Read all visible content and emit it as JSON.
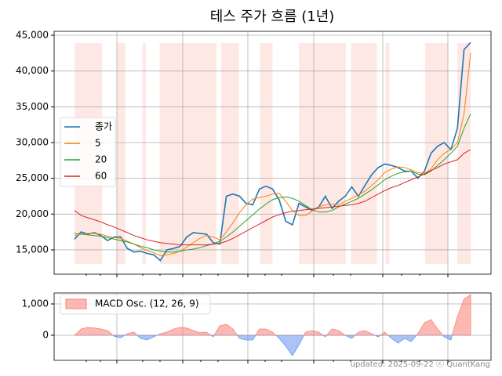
{
  "chart_data": [
    {
      "type": "line",
      "title": "테스 주가 흐름 (1년)",
      "ylim": [
        11600,
        45550
      ],
      "yticks": [
        {
          "value": 15000,
          "label": "15,000"
        },
        {
          "value": 20000,
          "label": "20,000"
        },
        {
          "value": 25000,
          "label": "25,000"
        },
        {
          "value": 30000,
          "label": "30,000"
        },
        {
          "value": 35000,
          "label": "35,000"
        },
        {
          "value": 40000,
          "label": "40,000"
        },
        {
          "value": 45000,
          "label": "45,000"
        }
      ],
      "grid": true,
      "legend": "center left",
      "shaded_spans": [
        [
          0,
          4.2
        ],
        [
          6.4,
          7.7
        ],
        [
          10.3,
          10.8
        ],
        [
          12.9,
          21.5
        ],
        [
          22.2,
          24.9
        ],
        [
          28.1,
          30
        ],
        [
          34,
          41.1
        ],
        [
          41.9,
          45.8
        ],
        [
          47.1,
          47.7
        ],
        [
          53.1,
          56.6
        ],
        [
          58,
          60
        ]
      ],
      "shade_color": "#fde8e4",
      "series": [
        {
          "name": "종가",
          "color": "#1f77b4",
          "values": [
            16500,
            17500,
            17200,
            17400,
            17000,
            16300,
            16800,
            16800,
            15200,
            14700,
            14800,
            14500,
            14300,
            13500,
            15000,
            15200,
            15500,
            16800,
            17400,
            17300,
            17200,
            16000,
            15800,
            22500,
            22800,
            22500,
            21500,
            21300,
            23500,
            23900,
            23500,
            22000,
            19000,
            18500,
            21500,
            21000,
            20500,
            21000,
            22500,
            20800,
            21800,
            22500,
            23800,
            22500,
            24000,
            25500,
            26500,
            27000,
            26800,
            26500,
            26000,
            26000,
            25000,
            26000,
            28500,
            29500,
            30000,
            29000,
            32000,
            43000,
            44000
          ]
        },
        {
          "name": "5",
          "color": "#ff7f0e",
          "values": [
            17000,
            17200,
            17300,
            17300,
            17200,
            16900,
            16700,
            16600,
            16200,
            15800,
            15300,
            14900,
            14600,
            14200,
            14300,
            14500,
            14800,
            15400,
            16000,
            16600,
            17000,
            16800,
            16400,
            17500,
            18800,
            20200,
            21300,
            22100,
            22300,
            22500,
            22800,
            22900,
            21800,
            20500,
            19800,
            19800,
            20400,
            21000,
            21300,
            21400,
            21300,
            21800,
            22200,
            22700,
            23200,
            24000,
            24800,
            25800,
            26300,
            26600,
            26500,
            26200,
            25800,
            25700,
            26300,
            27600,
            28500,
            29000,
            30000,
            34000,
            42500
          ]
        },
        {
          "name": "20",
          "color": "#2ca02c",
          "values": [
            17300,
            17200,
            17100,
            17000,
            16900,
            16700,
            16500,
            16300,
            16100,
            15800,
            15500,
            15300,
            15000,
            14800,
            14700,
            14700,
            14800,
            15000,
            15100,
            15300,
            15600,
            15800,
            16200,
            16800,
            17500,
            18300,
            19100,
            19900,
            20700,
            21400,
            22000,
            22300,
            22400,
            22200,
            21800,
            21200,
            20600,
            20300,
            20300,
            20500,
            21000,
            21400,
            21800,
            22200,
            22800,
            23400,
            24100,
            24800,
            25300,
            25700,
            25900,
            26000,
            25600,
            25500,
            26000,
            26800,
            27600,
            28500,
            29500,
            32000,
            34000
          ]
        },
        {
          "name": "60",
          "color": "#d62728",
          "values": [
            20500,
            19800,
            19500,
            19200,
            18900,
            18500,
            18200,
            17800,
            17400,
            17000,
            16700,
            16400,
            16200,
            16000,
            15900,
            15800,
            15700,
            15700,
            15700,
            15700,
            15700,
            15800,
            15900,
            16200,
            16600,
            17100,
            17600,
            18100,
            18600,
            19100,
            19600,
            19900,
            20200,
            20400,
            20500,
            20600,
            20700,
            20800,
            20900,
            21000,
            21100,
            21200,
            21300,
            21500,
            21800,
            22300,
            22800,
            23300,
            23700,
            24000,
            24400,
            24800,
            25200,
            25600,
            26100,
            26500,
            27000,
            27300,
            27600,
            28500,
            29000
          ]
        }
      ]
    },
    {
      "type": "area",
      "ylim": [
        -800,
        1350
      ],
      "yticks": [
        0,
        {
          "value": 1000,
          "label": "1,000"
        }
      ],
      "grid": true,
      "legend": "upper left",
      "annotation": "updated: 2025-09-22 ⓒ QuantKang",
      "series": [
        {
          "name": "MACD Osc. (12, 26, 9)",
          "color": "#fa8072",
          "negative_color": "#6495ed",
          "values": [
            0,
            200,
            250,
            230,
            200,
            150,
            -30,
            -80,
            50,
            100,
            -100,
            -150,
            -50,
            50,
            100,
            200,
            250,
            230,
            150,
            80,
            100,
            -50,
            300,
            350,
            200,
            -100,
            -150,
            -150,
            200,
            200,
            100,
            -100,
            -350,
            -650,
            -300,
            100,
            150,
            100,
            -50,
            200,
            150,
            0,
            -100,
            100,
            150,
            50,
            -50,
            100,
            -100,
            -250,
            -100,
            -200,
            50,
            400,
            500,
            200,
            -50,
            -150,
            600,
            1150,
            1300
          ]
        }
      ]
    }
  ]
}
